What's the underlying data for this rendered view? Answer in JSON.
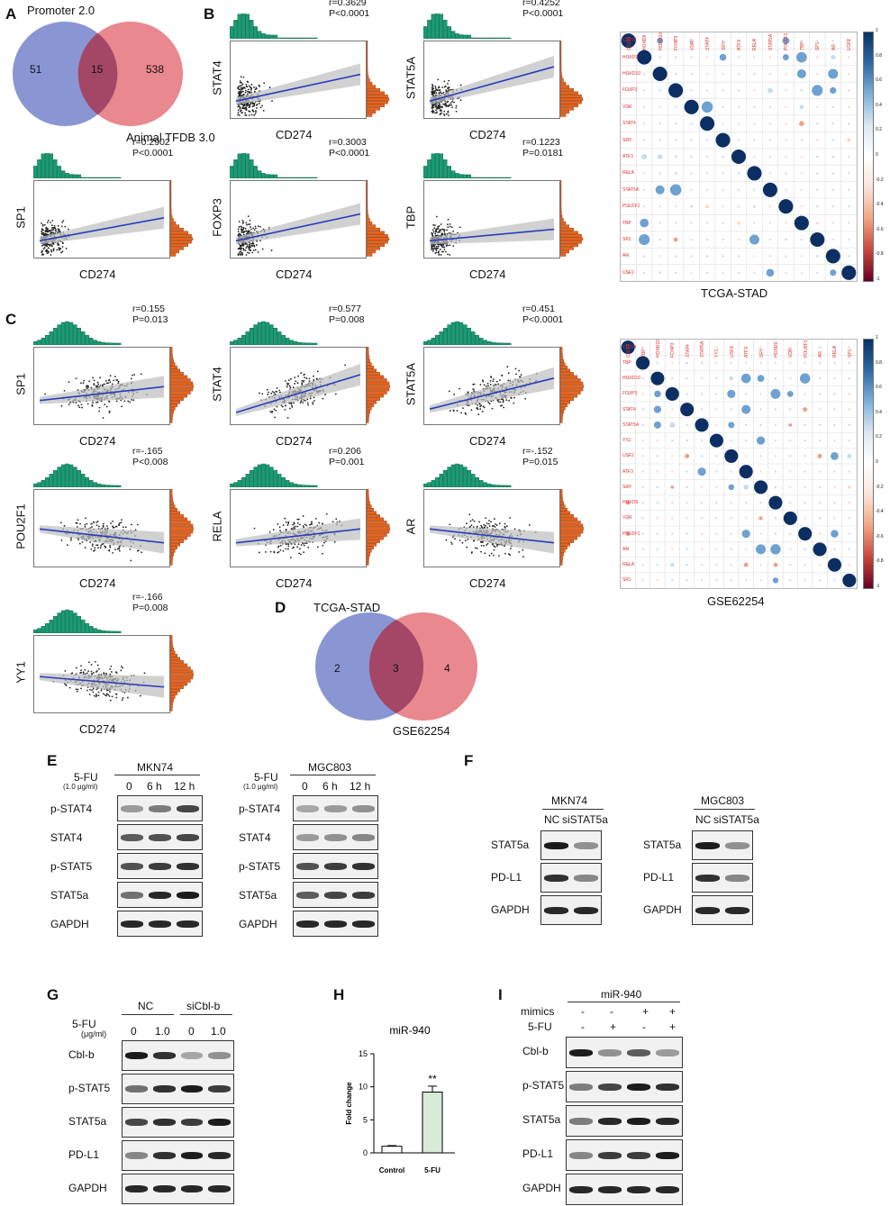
{
  "panels": {
    "A": "A",
    "B": "B",
    "C": "C",
    "D": "D",
    "E": "E",
    "F": "F",
    "G": "G",
    "H": "H",
    "I": "I"
  },
  "venn_a": {
    "left_label": "Promoter 2.0",
    "right_label": "Animal TFDB 3.0",
    "left_only": "51",
    "overlap": "15",
    "right_only": "538"
  },
  "venn_d": {
    "left_label": "TCGA-STAD",
    "right_label": "GSE62254",
    "left_only": "2",
    "overlap": "3",
    "right_only": "4"
  },
  "scatter_x_label": "CD274",
  "scatter_b": [
    {
      "gene": "STAT4",
      "r": "r=0.3629",
      "p": "P<0.0001"
    },
    {
      "gene": "STAT5A",
      "r": "r=0.4252",
      "p": "P<0.0001"
    },
    {
      "gene": "SP1",
      "r": "r=0.2902",
      "p": "P<0.0001"
    },
    {
      "gene": "FOXP3",
      "r": "r=0.3003",
      "p": "P<0.0001"
    },
    {
      "gene": "TBP",
      "r": "r=0.1223",
      "p": "P=0.0181"
    }
  ],
  "scatter_c": [
    {
      "gene": "SP1",
      "r": "r=0.155",
      "p": "P=0.013"
    },
    {
      "gene": "STAT4",
      "r": "r=0.577",
      "p": "P=0.008"
    },
    {
      "gene": "STAT5A",
      "r": "r=0.451",
      "p": "P<0.0001"
    },
    {
      "gene": "POU2F1",
      "r": "r=-.165",
      "p": "P<0.008"
    },
    {
      "gene": "RELA",
      "r": "r=0.206",
      "p": "P=0.001"
    },
    {
      "gene": "AR",
      "r": "r=-.152",
      "p": "P=0.015"
    },
    {
      "gene": "YY1",
      "r": "r=-.166",
      "p": "P=0.008"
    }
  ],
  "corr_tcga": {
    "caption": "TCGA-STAD",
    "genes": [
      "CD274",
      "HOXD9",
      "HOXD10",
      "FOXP3",
      "VDR",
      "STAT4",
      "SRY",
      "ATF3",
      "RELA",
      "STAT5A",
      "POU2F1",
      "TBP",
      "SP1",
      "AR",
      "USF2"
    ]
  },
  "corr_gse": {
    "caption": "GSE62254",
    "genes": [
      "CD274",
      "TBP",
      "HOXD10",
      "FOXP3",
      "STAT4",
      "STAT5A",
      "YY1",
      "USF2",
      "ATF3",
      "SRY",
      "HOXD9",
      "VDR",
      "POU2F1",
      "AR",
      "RELA",
      "SP1"
    ]
  },
  "colorbar_ticks": [
    "1",
    "0.8",
    "0.6",
    "0.4",
    "0.2",
    "0",
    "-0.2",
    "-0.4",
    "-0.6",
    "-0.8",
    "-1"
  ],
  "blot_e": {
    "treatment": "5-FU",
    "dose": "(1.0 μg/ml)",
    "lanes": [
      "0",
      "6 h",
      "12 h"
    ],
    "cell_left": "MKN74",
    "cell_right": "MGC803",
    "rows": [
      "p-STAT4",
      "STAT4",
      "p-STAT5",
      "STAT5a",
      "GAPDH"
    ]
  },
  "blot_f": {
    "cell_left": "MKN74",
    "cell_right": "MGC803",
    "lanes": [
      "NC",
      "siSTAT5a"
    ],
    "rows": [
      "STAT5a",
      "PD-L1",
      "GAPDH"
    ]
  },
  "blot_g": {
    "group_nc": "NC",
    "group_si": "siCbl-b",
    "treatment": "5-FU",
    "unit": "(μg/ml)",
    "lanes": [
      "0",
      "1.0",
      "0",
      "1.0"
    ],
    "rows": [
      "Cbl-b",
      "p-STAT5",
      "STAT5a",
      "PD-L1",
      "GAPDH"
    ]
  },
  "chart_data": {
    "type": "bar",
    "title": "miR-940",
    "categories": [
      "Control",
      "5-FU"
    ],
    "values": [
      1.0,
      9.2
    ],
    "errors": [
      0.1,
      0.9
    ],
    "ylabel": "Fold change",
    "ylim": [
      0,
      15
    ],
    "yticks": [
      "0",
      "5",
      "10",
      "15"
    ],
    "significance": "**",
    "colors": [
      "#ffffff",
      "#d8ead8"
    ]
  },
  "blot_i": {
    "group": "miR-940",
    "row1_label": "mimics",
    "row1_signs": [
      "-",
      "-",
      "+",
      "+"
    ],
    "row2_label": "5-FU",
    "row2_signs": [
      "-",
      "+",
      "-",
      "+"
    ],
    "rows": [
      "Cbl-b",
      "p-STAT5",
      "STAT5a",
      "PD-L1",
      "GAPDH"
    ]
  }
}
